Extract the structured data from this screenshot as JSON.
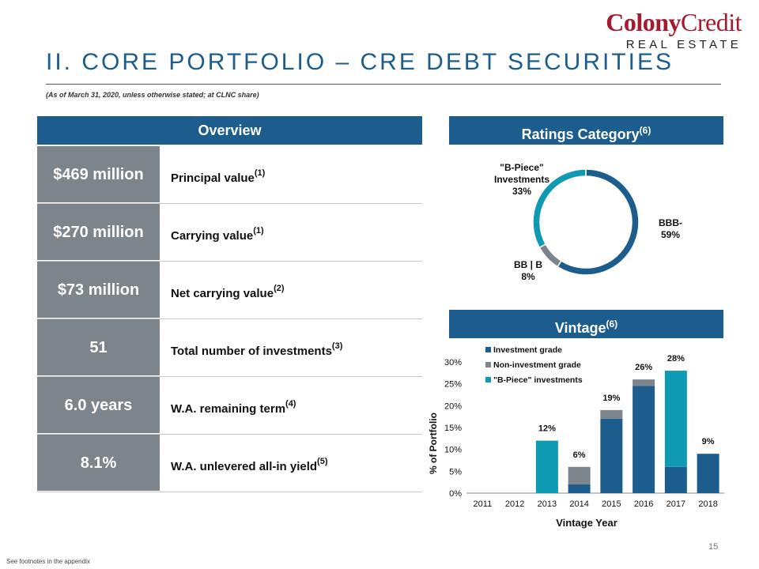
{
  "logo": {
    "main_bold": "Colony",
    "main_thin": "Credit",
    "sub": "REAL ESTATE"
  },
  "header": {
    "title": "II. CORE PORTFOLIO – CRE DEBT SECURITIES",
    "subtitle": "(As of March 31, 2020, unless otherwise stated; at CLNC share)"
  },
  "overview": {
    "header": "Overview",
    "rows": [
      {
        "value": "$469 million",
        "label": "Principal value",
        "note": "(1)"
      },
      {
        "value": "$270 million",
        "label": "Carrying value",
        "note": "(1)"
      },
      {
        "value": "$73 million",
        "label": "Net carrying value",
        "note": "(2)"
      },
      {
        "value": "51",
        "label": "Total number of investments",
        "note": "(3)"
      },
      {
        "value": "6.0 years",
        "label": "W.A. remaining term",
        "note": "(4)"
      },
      {
        "value": "8.1%",
        "label": "W.A. unlevered all-in yield",
        "note": "(5)"
      }
    ]
  },
  "ratings": {
    "header": "Ratings Category",
    "note": "(6)"
  },
  "vintage": {
    "header": "Vintage",
    "note": "(6)"
  },
  "colors": {
    "investment_grade": "#1c5d8e",
    "non_investment_grade": "#7b858b",
    "b_piece": "#0e9ab2",
    "header_bg": "#1c5d8e"
  },
  "chart_data": [
    {
      "type": "pie",
      "variant": "donut",
      "slices": [
        {
          "label": "BBB-",
          "value": 59,
          "display": "59%",
          "color": "#1c5d8e"
        },
        {
          "label": "BB | B",
          "value": 8,
          "display": "8%",
          "color": "#7b858b"
        },
        {
          "label": "\"B-Piece\" Investments",
          "value": 33,
          "display": "33%",
          "color": "#0e9ab2"
        }
      ]
    },
    {
      "type": "bar",
      "stacked": true,
      "categories": [
        "2011",
        "2012",
        "2013",
        "2014",
        "2015",
        "2016",
        "2017",
        "2018"
      ],
      "series": [
        {
          "name": "Investment grade",
          "color": "#1c5d8e",
          "values": [
            0,
            0,
            0,
            2,
            17,
            24.5,
            6,
            9
          ]
        },
        {
          "name": "Non-investment grade",
          "color": "#7b858b",
          "values": [
            0,
            0,
            0,
            4,
            2,
            1.5,
            0,
            0
          ]
        },
        {
          "name": "\"B-Piece\" investments",
          "color": "#0e9ab2",
          "values": [
            0,
            0,
            12,
            0,
            0,
            0,
            22,
            0
          ]
        }
      ],
      "totals": [
        "",
        "",
        "12%",
        "6%",
        "19%",
        "26%",
        "28%",
        "9%"
      ],
      "ylabel": "% of Portfolio",
      "xlabel": "Vintage Year",
      "ylim": [
        0,
        30
      ],
      "yticks": [
        "0%",
        "5%",
        "10%",
        "15%",
        "20%",
        "25%",
        "30%"
      ],
      "legend_position": "top-left",
      "grid": false
    }
  ],
  "footer": {
    "note": "See footnotes in the appendix",
    "page": "15"
  }
}
